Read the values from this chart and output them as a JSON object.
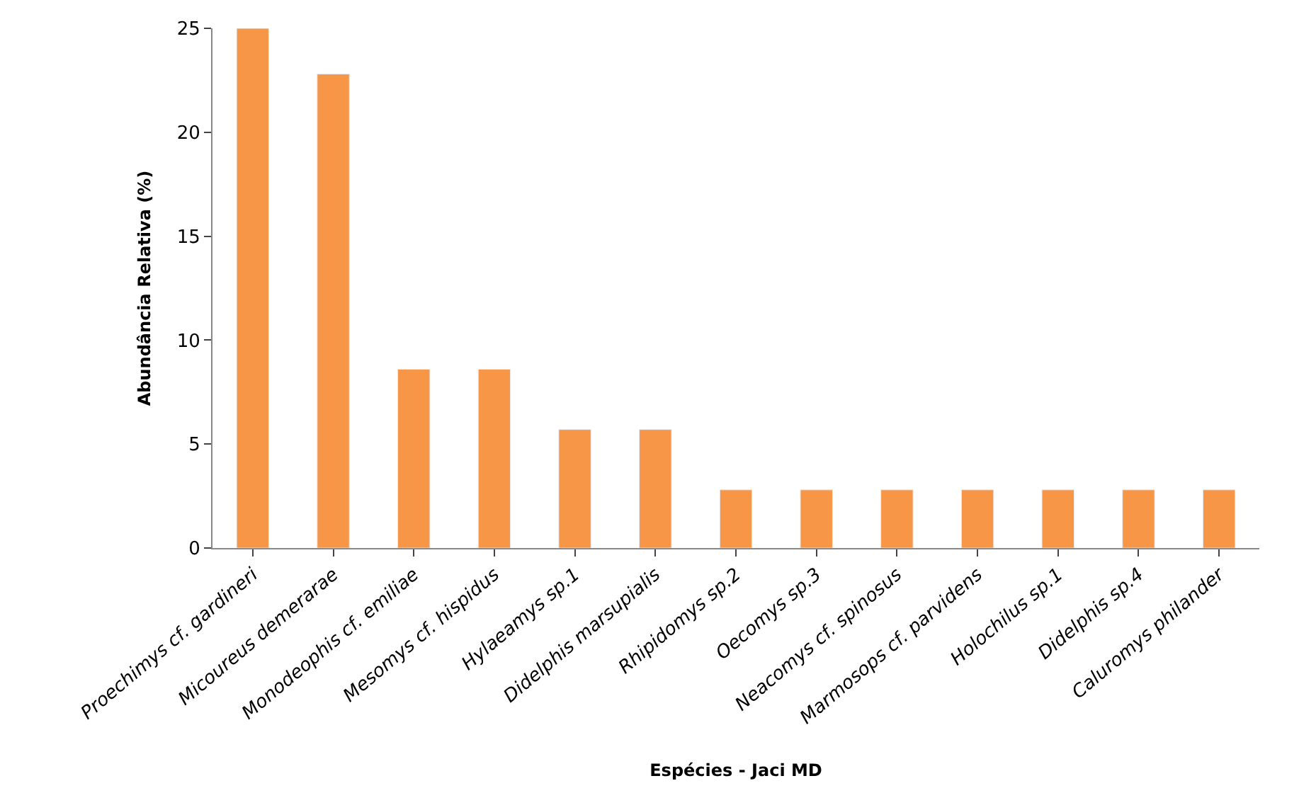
{
  "chart_data": {
    "type": "bar",
    "xlabel": "Espécies - Jaci MD",
    "ylabel": "Abundância Relativa (%)",
    "categories": [
      "Proechimys cf. gardineri",
      "Micoureus demerarae",
      "Monodeophis cf. emiliae",
      "Mesomys cf. hispidus",
      "Hylaeamys sp.1",
      "Didelphis marsupialis",
      "Rhipidomys sp.2",
      "Oecomys sp.3",
      "Neacomys cf. spinosus",
      "Marmosops cf. parvidens",
      "Holochilus sp.1",
      "Didelphis sp.4",
      "Caluromys philander"
    ],
    "values": [
      25,
      22.8,
      8.6,
      8.6,
      5.7,
      5.7,
      2.8,
      2.8,
      2.8,
      2.8,
      2.8,
      2.8,
      2.8
    ],
    "color": "#f79646",
    "ylim": [
      0,
      25
    ],
    "yticks": [
      0,
      5,
      10,
      15,
      20,
      25
    ]
  }
}
